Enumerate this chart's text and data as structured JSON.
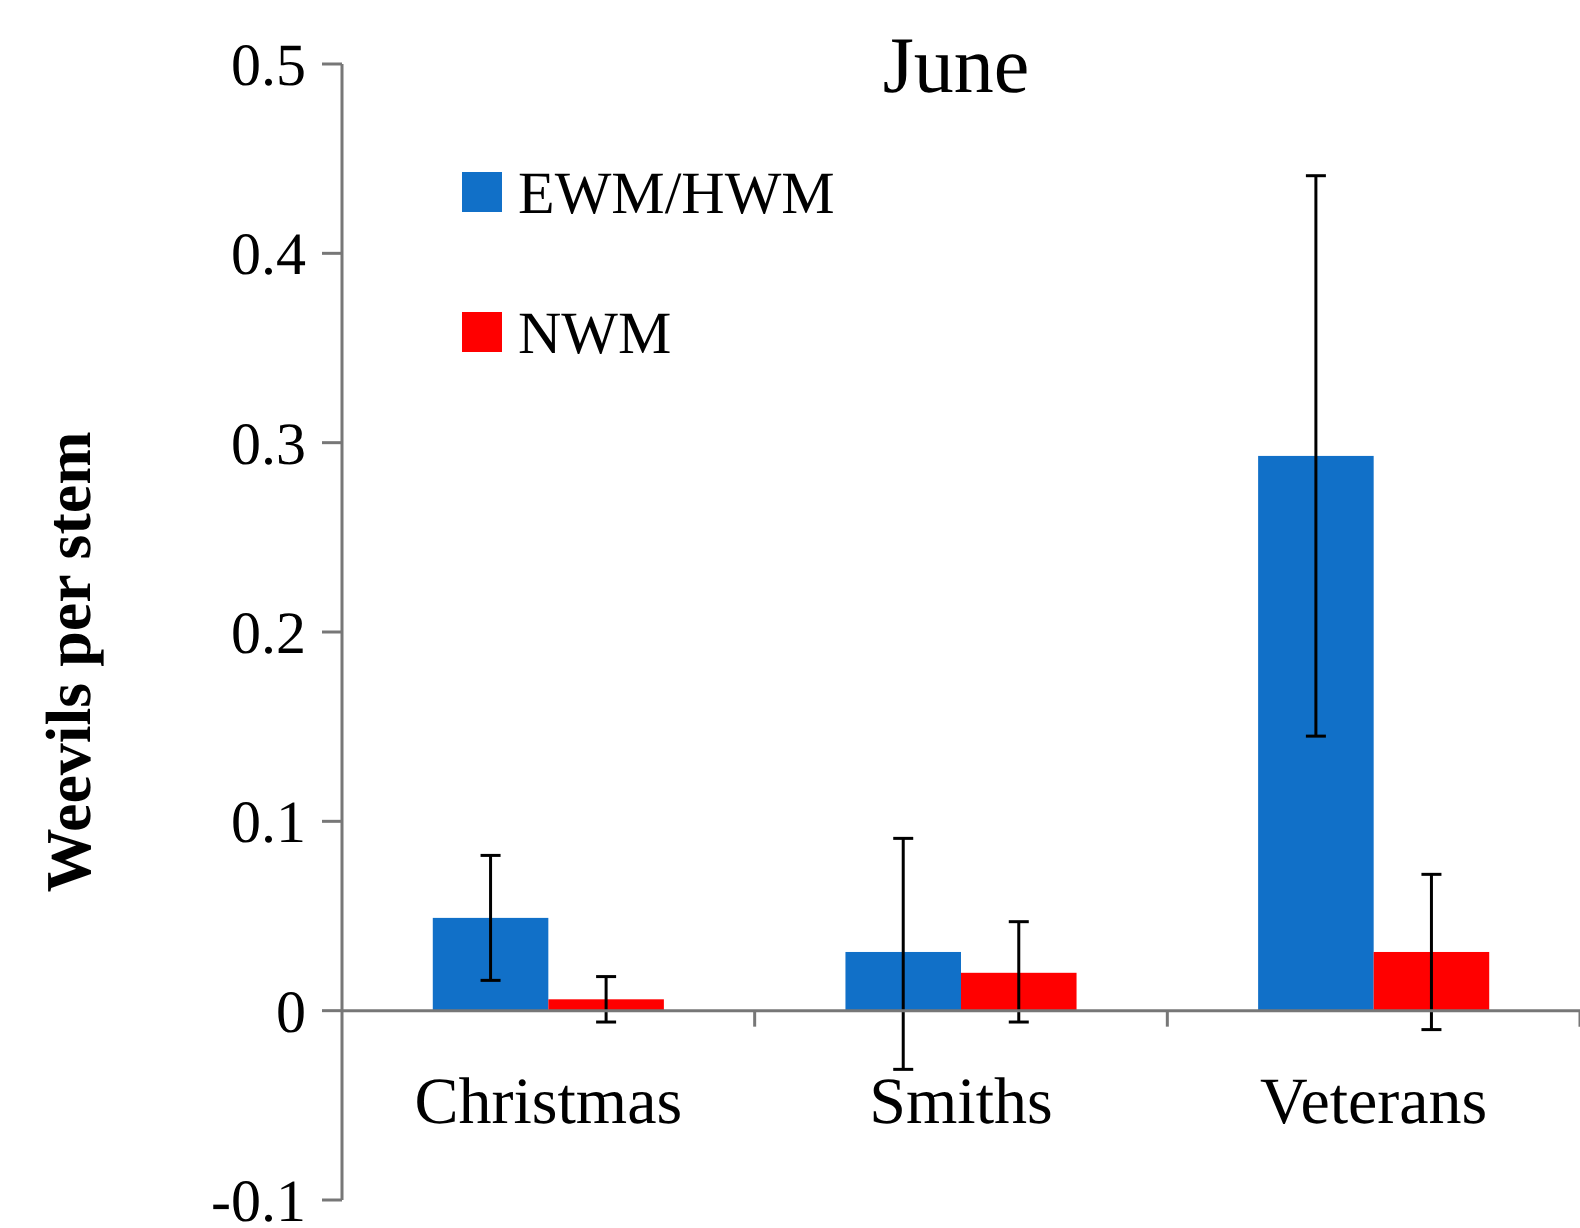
{
  "chart_data": {
    "type": "bar",
    "title": "June",
    "ylabel": "Weevils per stem",
    "categories": [
      "Christmas",
      "Smiths",
      "Veterans"
    ],
    "series": [
      {
        "name": "EWM/HWM",
        "color": "#1170c8",
        "values": [
          0.049,
          0.031,
          0.293
        ],
        "errors": [
          [
            0.016,
            0.082
          ],
          [
            -0.031,
            0.091
          ],
          [
            0.145,
            0.441
          ]
        ]
      },
      {
        "name": "NWM",
        "color": "#ff0000",
        "values": [
          0.006,
          0.02,
          0.031
        ],
        "errors": [
          [
            -0.006,
            0.018
          ],
          [
            -0.006,
            0.047
          ],
          [
            -0.01,
            0.072
          ]
        ]
      }
    ],
    "ylim": [
      -0.1,
      0.5
    ],
    "yticks": [
      {
        "value": -0.1,
        "label": "-0.1"
      },
      {
        "value": 0,
        "label": "0"
      },
      {
        "value": 0.1,
        "label": "0.1"
      },
      {
        "value": 0.2,
        "label": "0.2"
      },
      {
        "value": 0.3,
        "label": "0.3"
      },
      {
        "value": 0.4,
        "label": "0.4"
      },
      {
        "value": 0.5,
        "label": "0.5"
      }
    ],
    "grid": false,
    "legend": "top left"
  }
}
